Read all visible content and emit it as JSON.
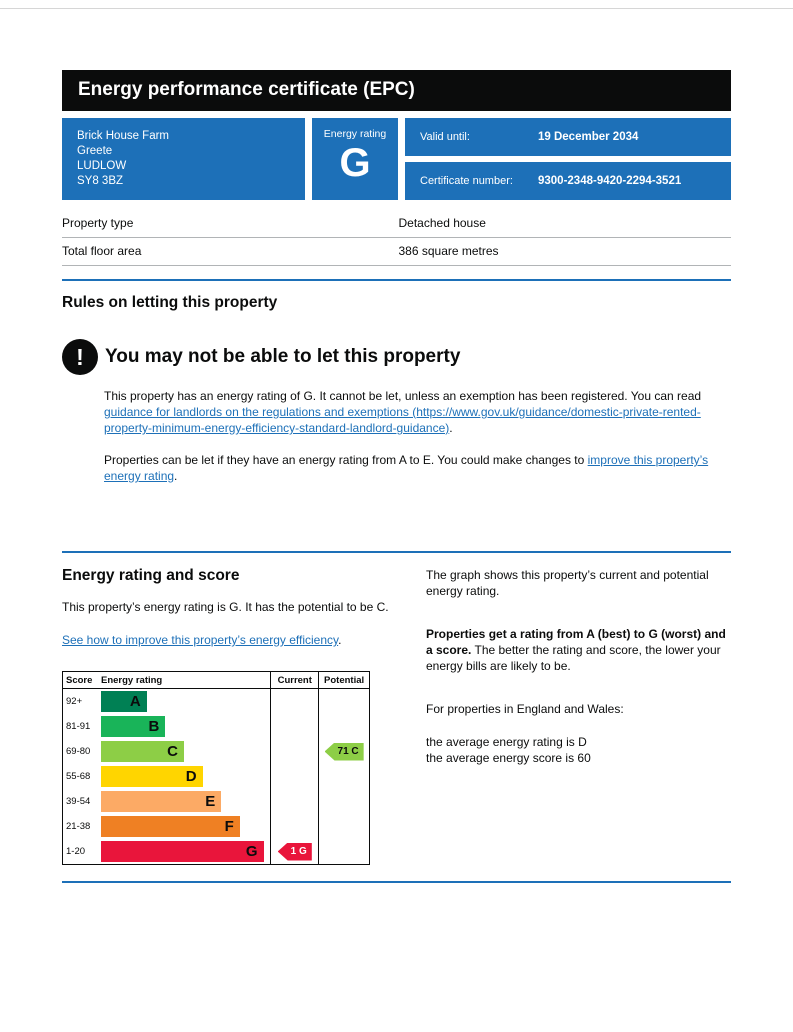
{
  "page": {
    "title": "Energy performance certificate (EPC)"
  },
  "summary": {
    "address": [
      "Brick House Farm",
      "Greete",
      "LUDLOW",
      "SY8 3BZ"
    ],
    "energy_rating_label": "Energy rating",
    "energy_rating": "G",
    "valid_until_label": "Valid until:",
    "valid_until_value": "19 December 2034",
    "certificate_number_label": "Certificate number:",
    "certificate_number_value": "9300-2348-9420-2294-3521"
  },
  "property": {
    "rows": [
      {
        "label": "Property type",
        "value": "Detached house"
      },
      {
        "label": "Total floor area",
        "value": "386 square metres"
      }
    ]
  },
  "rules": {
    "section_heading": "Rules on letting this property",
    "warning_icon_glyph": "!",
    "warning_heading": "You may not be able to let this property",
    "paragraph1_prefix": "This property has an energy rating of G. It cannot be let, unless an exemption has been registered. You can read ",
    "paragraph1_link": "guidance for landlords on the regulations and exemptions (https://www.gov.uk/guidance/domestic-private-rented-property-minimum-energy-efficiency-standard-landlord-guidance)",
    "paragraph1_suffix": ".",
    "paragraph2_prefix": "Properties can be let if they have an energy rating from A to E. You could make changes to ",
    "paragraph2_link": "improve this property’s energy rating",
    "paragraph2_suffix": "."
  },
  "rating_section": {
    "heading": "Energy rating and score",
    "intro": "This property’s energy rating is G. It has the potential to be C.",
    "improve_link": "See how to improve this property’s energy efficiency",
    "improve_link_suffix": ".",
    "explanation": {
      "graph_text": "The graph shows this property’s current and potential energy rating.",
      "ratings_bold": "Properties get a rating from A (best) to G (worst) and a score.",
      "ratings_rest": " The better the rating and score, the lower your energy bills are likely to be.",
      "england_wales": "For properties in England and Wales:",
      "average_rating": "the average energy rating is D",
      "average_score": "the average energy score is 60"
    }
  },
  "chart_data": {
    "type": "epc-rating-bands",
    "headers": {
      "score": "Score",
      "rating": "Energy rating",
      "current": "Current",
      "potential": "Potential"
    },
    "bands": [
      {
        "score": "92+",
        "letter": "A",
        "color": "#008054",
        "width_pct": 27
      },
      {
        "score": "81-91",
        "letter": "B",
        "color": "#19b459",
        "width_pct": 38
      },
      {
        "score": "69-80",
        "letter": "C",
        "color": "#8dce46",
        "width_pct": 49
      },
      {
        "score": "55-68",
        "letter": "D",
        "color": "#ffd500",
        "width_pct": 60
      },
      {
        "score": "39-54",
        "letter": "E",
        "color": "#fcaa65",
        "width_pct": 71
      },
      {
        "score": "21-38",
        "letter": "F",
        "color": "#ef8023",
        "width_pct": 82
      },
      {
        "score": "1-20",
        "letter": "G",
        "color": "#e9153b",
        "width_pct": 96
      }
    ],
    "current": {
      "label": "1 G",
      "score": 1,
      "band": "G",
      "row": 6,
      "color": "#e9153b",
      "text_color": "#ffffff"
    },
    "potential": {
      "label": "71 C",
      "score": 71,
      "band": "C",
      "row": 2,
      "color": "#8dce46",
      "text_color": "#0b0c0c"
    }
  },
  "colors": {
    "govuk_blue": "#1d70b8",
    "banner_black": "#0b0c0c"
  }
}
